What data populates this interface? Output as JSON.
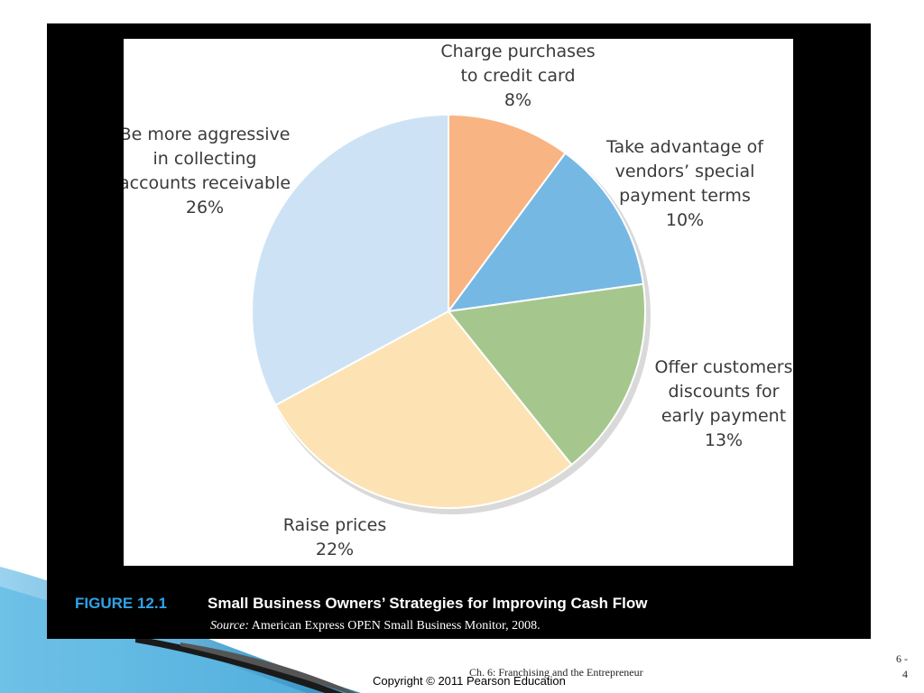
{
  "chart_data": {
    "type": "pie",
    "title": "Small Business Owners’ Strategies for Improving Cash Flow",
    "figure_number": "FIGURE 12.1",
    "source": "American Express OPEN Small Business Monitor, 2008.",
    "source_label": "Source:",
    "slices": [
      {
        "label_lines": [
          "Charge purchases",
          "to credit card"
        ],
        "value_label": "8%",
        "value": 8,
        "color": "#f8b482"
      },
      {
        "label_lines": [
          "Take advantage of",
          "vendors’ special",
          "payment terms"
        ],
        "value_label": "10%",
        "value": 10,
        "color": "#76b8e4"
      },
      {
        "label_lines": [
          "Offer customers",
          "discounts for",
          "early payment"
        ],
        "value_label": "13%",
        "value": 13,
        "color": "#a5c78e"
      },
      {
        "label_lines": [
          "Raise prices"
        ],
        "value_label": "22%",
        "value": 22,
        "color": "#fde3b3"
      },
      {
        "label_lines": [
          "Be more aggressive",
          "in collecting",
          "accounts receivable"
        ],
        "value_label": "26%",
        "value": 26,
        "color": "#cde3f5"
      }
    ]
  },
  "footer": {
    "chapter": "Ch. 6: Franchising and the Entrepreneur",
    "copyright": "Copyright © 2011 Pearson Education",
    "page_line1": "6 -",
    "page_line2": "4"
  },
  "colors": {
    "frame": "#000000",
    "figure_number": "#2fa3e6",
    "swoosh": "#3aa6d8"
  }
}
